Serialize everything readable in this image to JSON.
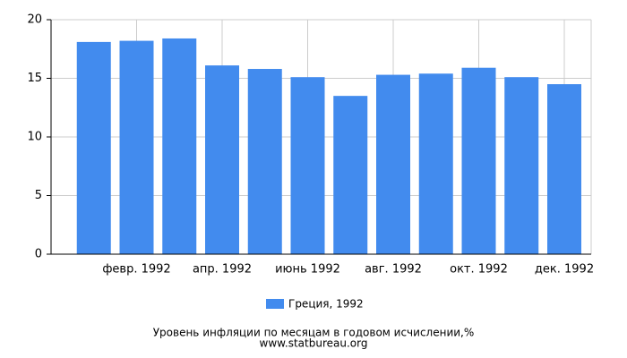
{
  "chart_data": {
    "type": "bar",
    "title": "Уровень инфляции по месяцам в годовом исчислении,%",
    "subtitle": "www.statbureau.org",
    "categories": [
      null,
      "февр. 1992",
      null,
      "апр. 1992",
      null,
      "июнь 1992",
      null,
      "авг. 1992",
      null,
      "окт. 1992",
      null,
      "дек. 1992"
    ],
    "series": [
      {
        "name": "Греция, 1992",
        "color": "#428bee",
        "values": [
          18.1,
          18.2,
          18.4,
          16.1,
          15.8,
          15.1,
          13.5,
          15.3,
          15.4,
          15.9,
          15.1,
          14.5
        ]
      }
    ],
    "ylim": [
      0,
      20
    ],
    "yticks": [
      0,
      5,
      10,
      15,
      20
    ],
    "grid": true
  }
}
